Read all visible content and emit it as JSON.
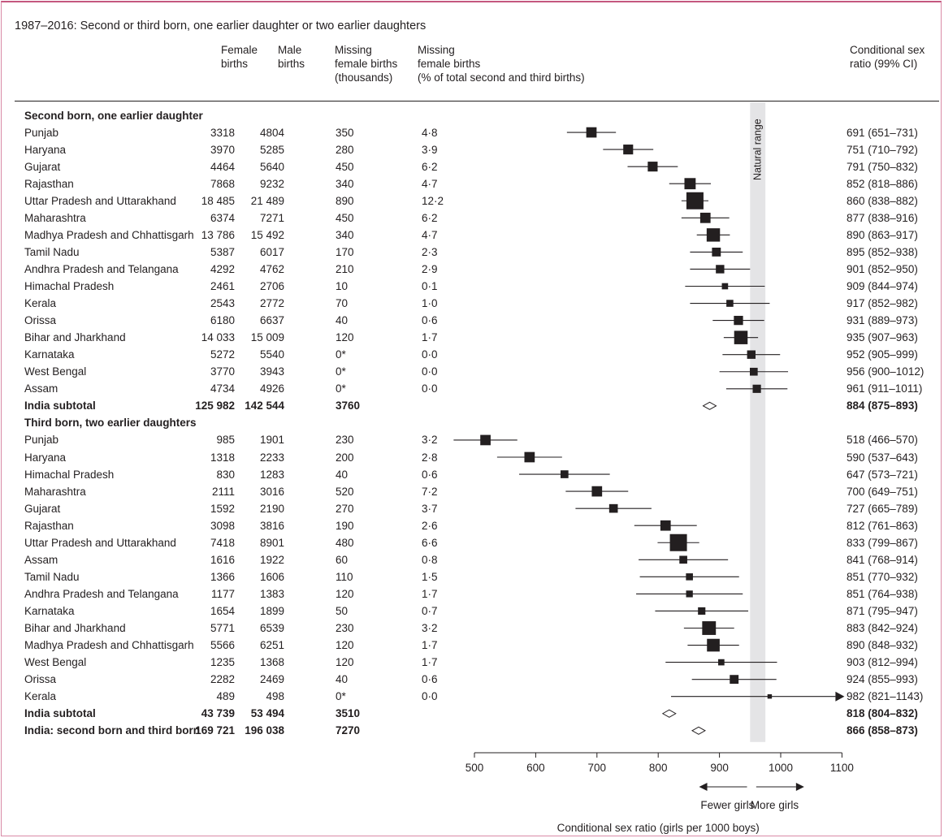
{
  "title": "1987–2016: Second or third born, one earlier daughter or two earlier daughters",
  "columns": {
    "female_births": "Female\nbirths",
    "male_births": "Male\nbirths",
    "missing_thousands": "Missing\nfemale births\n(thousands)",
    "missing_pct": "Missing\nfemale births\n(% of total second and third births)",
    "csr": "Conditional sex\nratio (99% CI)"
  },
  "natural_range_label": "Natural range",
  "axis": {
    "ticks": [
      "500",
      "600",
      "700",
      "800",
      "900",
      "1000",
      "1100"
    ],
    "xlabel": "Conditional sex ratio (girls per 1000 boys)",
    "arrow_left": "Fewer girls",
    "arrow_right": "More girls"
  },
  "chart_data": {
    "type": "forest",
    "xlim": [
      500,
      1100
    ],
    "natural_range": [
      950,
      975
    ],
    "xlabel": "Conditional sex ratio (girls per 1000 boys)",
    "rows": [
      {
        "kind": "section",
        "label": "Second born, one earlier daughter"
      },
      {
        "kind": "study",
        "label": "Punjab",
        "female": "3318",
        "male": "4804",
        "missing": "350",
        "pct": "4·8",
        "csr": "691 (651–731)",
        "est": 691,
        "lo": 651,
        "hi": 731,
        "w": 330
      },
      {
        "kind": "study",
        "label": "Haryana",
        "female": "3970",
        "male": "5285",
        "missing": "280",
        "pct": "3·9",
        "csr": "751 (710–792)",
        "est": 751,
        "lo": 710,
        "hi": 792,
        "w": 300
      },
      {
        "kind": "study",
        "label": "Gujarat",
        "female": "4464",
        "male": "5640",
        "missing": "450",
        "pct": "6·2",
        "csr": "791 (750–832)",
        "est": 791,
        "lo": 750,
        "hi": 832,
        "w": 300
      },
      {
        "kind": "study",
        "label": "Rajasthan",
        "female": "7868",
        "male": "9232",
        "missing": "340",
        "pct": "4·7",
        "csr": "852 (818–886)",
        "est": 852,
        "lo": 818,
        "hi": 886,
        "w": 390
      },
      {
        "kind": "study",
        "label": "Uttar Pradesh and Uttarakhand",
        "female": "18 485",
        "male": "21 489",
        "missing": "890",
        "pct": "12·2",
        "csr": "860 (838–882)",
        "est": 860,
        "lo": 838,
        "hi": 882,
        "w": 900
      },
      {
        "kind": "study",
        "label": "Maharashtra",
        "female": "6374",
        "male": "7271",
        "missing": "450",
        "pct": "6·2",
        "csr": "877 (838–916)",
        "est": 877,
        "lo": 838,
        "hi": 916,
        "w": 330
      },
      {
        "kind": "study",
        "label": "Madhya Pradesh and Chhattisgarh",
        "female": "13 786",
        "male": "15 492",
        "missing": "340",
        "pct": "4·7",
        "csr": "890 (863–917)",
        "est": 890,
        "lo": 863,
        "hi": 917,
        "w": 550
      },
      {
        "kind": "study",
        "label": "Tamil Nadu",
        "female": "5387",
        "male": "6017",
        "missing": "170",
        "pct": "2·3",
        "csr": "895 (852–938)",
        "est": 895,
        "lo": 852,
        "hi": 938,
        "w": 240
      },
      {
        "kind": "study",
        "label": "Andhra Pradesh and Telangana",
        "female": "4292",
        "male": "4762",
        "missing": "210",
        "pct": "2·9",
        "csr": "901 (852–950)",
        "est": 901,
        "lo": 852,
        "hi": 950,
        "w": 220
      },
      {
        "kind": "study",
        "label": "Himachal Pradesh",
        "female": "2461",
        "male": "2706",
        "missing": "10",
        "pct": "0·1",
        "csr": "909 (844–974)",
        "est": 909,
        "lo": 844,
        "hi": 974,
        "w": 120
      },
      {
        "kind": "study",
        "label": "Kerala",
        "female": "2543",
        "male": "2772",
        "missing": "70",
        "pct": "1·0",
        "csr": "917 (852–982)",
        "est": 917,
        "lo": 852,
        "hi": 982,
        "w": 150
      },
      {
        "kind": "study",
        "label": "Orissa",
        "female": "6180",
        "male": "6637",
        "missing": "40",
        "pct": "0·6",
        "csr": "931 (889–973)",
        "est": 931,
        "lo": 889,
        "hi": 973,
        "w": 260
      },
      {
        "kind": "study",
        "label": "Bihar and Jharkhand",
        "female": "14 033",
        "male": "15 009",
        "missing": "120",
        "pct": "1·7",
        "csr": "935 (907–963)",
        "est": 935,
        "lo": 907,
        "hi": 963,
        "w": 560
      },
      {
        "kind": "study",
        "label": "Karnataka",
        "female": "5272",
        "male": "5540",
        "missing": "0*",
        "pct": "0·0",
        "csr": "952 (905–999)",
        "est": 952,
        "lo": 905,
        "hi": 999,
        "w": 220
      },
      {
        "kind": "study",
        "label": "West Bengal",
        "female": "3770",
        "male": "3943",
        "missing": "0*",
        "pct": "0·0",
        "csr": "956 (900–1012)",
        "est": 956,
        "lo": 900,
        "hi": 1012,
        "w": 190
      },
      {
        "kind": "study",
        "label": "Assam",
        "female": "4734",
        "male": "4926",
        "missing": "0*",
        "pct": "0·0",
        "csr": "961 (911–1011)",
        "est": 961,
        "lo": 911,
        "hi": 1011,
        "w": 210
      },
      {
        "kind": "subtotal",
        "label": "India subtotal",
        "female": "125 982",
        "male": "142 544",
        "missing": "3760",
        "pct": "",
        "csr": "884 (875–893)",
        "est": 884,
        "lo": 875,
        "hi": 893
      },
      {
        "kind": "section",
        "label": "Third born, two earlier daughters"
      },
      {
        "kind": "study",
        "label": "Punjab",
        "female": "985",
        "male": "1901",
        "missing": "230",
        "pct": "3·2",
        "csr": "518 (466–570)",
        "est": 518,
        "lo": 466,
        "hi": 570,
        "w": 330
      },
      {
        "kind": "study",
        "label": "Haryana",
        "female": "1318",
        "male": "2233",
        "missing": "200",
        "pct": "2·8",
        "csr": "590 (537–643)",
        "est": 590,
        "lo": 537,
        "hi": 643,
        "w": 330
      },
      {
        "kind": "study",
        "label": "Himachal Pradesh",
        "female": "830",
        "male": "1283",
        "missing": "40",
        "pct": "0·6",
        "csr": "647 (573–721)",
        "est": 647,
        "lo": 573,
        "hi": 721,
        "w": 190
      },
      {
        "kind": "study",
        "label": "Maharashtra",
        "female": "2111",
        "male": "3016",
        "missing": "520",
        "pct": "7·2",
        "csr": "700 (649–751)",
        "est": 700,
        "lo": 649,
        "hi": 751,
        "w": 330
      },
      {
        "kind": "study",
        "label": "Gujarat",
        "female": "1592",
        "male": "2190",
        "missing": "270",
        "pct": "3·7",
        "csr": "727 (665–789)",
        "est": 727,
        "lo": 665,
        "hi": 789,
        "w": 230
      },
      {
        "kind": "study",
        "label": "Rajasthan",
        "female": "3098",
        "male": "3816",
        "missing": "190",
        "pct": "2·6",
        "csr": "812 (761–863)",
        "est": 812,
        "lo": 761,
        "hi": 863,
        "w": 330
      },
      {
        "kind": "study",
        "label": "Uttar Pradesh and Uttarakhand",
        "female": "7418",
        "male": "8901",
        "missing": "480",
        "pct": "6·6",
        "csr": "833 (799–867)",
        "est": 833,
        "lo": 799,
        "hi": 867,
        "w": 900
      },
      {
        "kind": "study",
        "label": "Assam",
        "female": "1616",
        "male": "1922",
        "missing": "60",
        "pct": "0·8",
        "csr": "841 (768–914)",
        "est": 841,
        "lo": 768,
        "hi": 914,
        "w": 190
      },
      {
        "kind": "study",
        "label": "Tamil Nadu",
        "female": "1366",
        "male": "1606",
        "missing": "110",
        "pct": "1·5",
        "csr": "851 (770–932)",
        "est": 851,
        "lo": 770,
        "hi": 932,
        "w": 150
      },
      {
        "kind": "study",
        "label": "Andhra Pradesh and Telangana",
        "female": "1177",
        "male": "1383",
        "missing": "120",
        "pct": "1·7",
        "csr": "851 (764–938)",
        "est": 851,
        "lo": 764,
        "hi": 938,
        "w": 140
      },
      {
        "kind": "study",
        "label": "Karnataka",
        "female": "1654",
        "male": "1899",
        "missing": "50",
        "pct": "0·7",
        "csr": "871 (795–947)",
        "est": 871,
        "lo": 795,
        "hi": 947,
        "w": 170
      },
      {
        "kind": "study",
        "label": "Bihar and Jharkhand",
        "female": "5771",
        "male": "6539",
        "missing": "230",
        "pct": "3·2",
        "csr": "883 (842–924)",
        "est": 883,
        "lo": 842,
        "hi": 924,
        "w": 580
      },
      {
        "kind": "study",
        "label": "Madhya Pradesh and Chhattisgarh",
        "female": "5566",
        "male": "6251",
        "missing": "120",
        "pct": "1·7",
        "csr": "890 (848–932)",
        "est": 890,
        "lo": 848,
        "hi": 932,
        "w": 500
      },
      {
        "kind": "study",
        "label": "West Bengal",
        "female": "1235",
        "male": "1368",
        "missing": "120",
        "pct": "1·7",
        "csr": "903 (812–994)",
        "est": 903,
        "lo": 812,
        "hi": 994,
        "w": 120
      },
      {
        "kind": "study",
        "label": "Orissa",
        "female": "2282",
        "male": "2469",
        "missing": "40",
        "pct": "0·6",
        "csr": "924 (855–993)",
        "est": 924,
        "lo": 855,
        "hi": 993,
        "w": 240
      },
      {
        "kind": "study",
        "label": "Kerala",
        "female": "489",
        "male": "498",
        "missing": "0*",
        "pct": "0·0",
        "csr": "982 (821–1143)",
        "est": 982,
        "lo": 821,
        "hi": 1143,
        "w": 60
      },
      {
        "kind": "subtotal",
        "label": "India subtotal",
        "female": "43 739",
        "male": "53 494",
        "missing": "3510",
        "pct": "",
        "csr": "818 (804–832)",
        "est": 818,
        "lo": 804,
        "hi": 832
      },
      {
        "kind": "subtotal",
        "label": "India: second born and third born",
        "female": "169 721",
        "male": "196 038",
        "missing": "7270",
        "pct": "",
        "csr": "866 (858–873)",
        "est": 866,
        "lo": 858,
        "hi": 873
      }
    ]
  }
}
